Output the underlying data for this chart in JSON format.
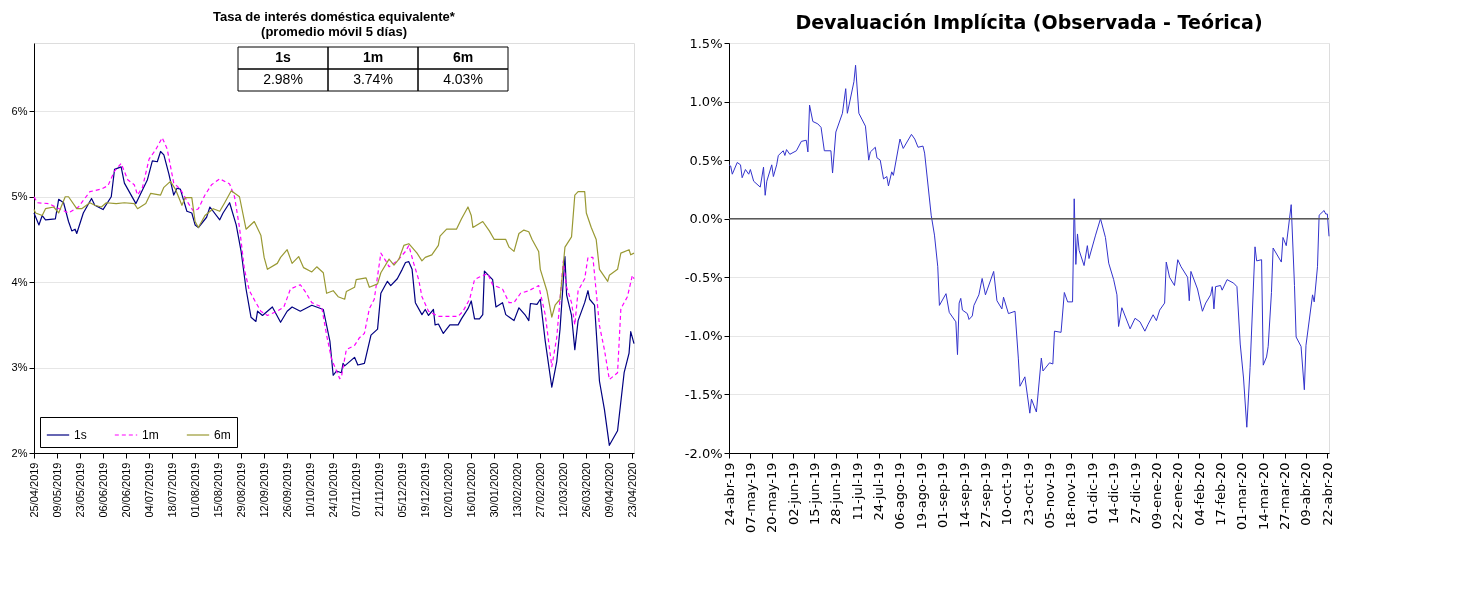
{
  "chart_data": [
    {
      "type": "line",
      "title": "Tasa de interés doméstica equivalente*",
      "subtitle": "(promedio móvil 5 días)",
      "xlim": [
        "2019-04-25",
        "2020-04-24"
      ],
      "ylim": [
        2,
        6.8
      ],
      "yticks": [
        {
          "value": 2,
          "label": "2%"
        },
        {
          "value": 3,
          "label": "3%"
        },
        {
          "value": 4,
          "label": "4%"
        },
        {
          "value": 5,
          "label": "5%"
        },
        {
          "value": 6,
          "label": "6%"
        }
      ],
      "xticks": [
        {
          "value": "2019-04-25",
          "label": "25/04/2019"
        },
        {
          "value": "2019-05-09",
          "label": "09/05/2019"
        },
        {
          "value": "2019-05-23",
          "label": "23/05/2019"
        },
        {
          "value": "2019-06-06",
          "label": "06/06/2019"
        },
        {
          "value": "2019-06-20",
          "label": "20/06/2019"
        },
        {
          "value": "2019-07-04",
          "label": "04/07/2019"
        },
        {
          "value": "2019-07-18",
          "label": "18/07/2019"
        },
        {
          "value": "2019-08-01",
          "label": "01/08/2019"
        },
        {
          "value": "2019-08-15",
          "label": "15/08/2019"
        },
        {
          "value": "2019-08-29",
          "label": "29/08/2019"
        },
        {
          "value": "2019-09-12",
          "label": "12/09/2019"
        },
        {
          "value": "2019-09-26",
          "label": "26/09/2019"
        },
        {
          "value": "2019-10-10",
          "label": "10/10/2019"
        },
        {
          "value": "2019-10-24",
          "label": "24/10/2019"
        },
        {
          "value": "2019-11-07",
          "label": "07/11/2019"
        },
        {
          "value": "2019-11-21",
          "label": "21/11/2019"
        },
        {
          "value": "2019-12-05",
          "label": "05/12/2019"
        },
        {
          "value": "2019-12-19",
          "label": "19/12/2019"
        },
        {
          "value": "2020-01-02",
          "label": "02/01/2020"
        },
        {
          "value": "2020-01-16",
          "label": "16/01/2020"
        },
        {
          "value": "2020-01-30",
          "label": "30/01/2020"
        },
        {
          "value": "2020-02-13",
          "label": "13/02/2020"
        },
        {
          "value": "2020-02-27",
          "label": "27/02/2020"
        },
        {
          "value": "2020-03-12",
          "label": "12/03/2020"
        },
        {
          "value": "2020-03-26",
          "label": "26/03/2020"
        },
        {
          "value": "2020-04-09",
          "label": "09/04/2020"
        },
        {
          "value": "2020-04-23",
          "label": "23/04/2020"
        }
      ],
      "grid": "y",
      "legend": "bottom left",
      "annotations": [
        "2.98%",
        "3.74%",
        "4.03%"
      ],
      "series": [
        {
          "name": "1s",
          "color": "#000080",
          "line_style": "solid",
          "x": [
            "2019-04-25",
            "2019-04-28",
            "2019-04-30",
            "2019-05-02",
            "2019-05-08",
            "2019-05-10",
            "2019-05-13",
            "2019-05-16",
            "2019-05-18",
            "2019-05-20",
            "2019-05-21",
            "2019-05-25",
            "2019-05-30",
            "2019-06-01",
            "2019-06-06",
            "2019-06-11",
            "2019-06-13",
            "2019-06-17",
            "2019-06-19",
            "2019-06-26",
            "2019-07-03",
            "2019-07-06",
            "2019-07-09",
            "2019-07-11",
            "2019-07-13",
            "2019-07-16",
            "2019-07-19",
            "2019-07-21",
            "2019-07-23",
            "2019-07-27",
            "2019-07-30",
            "2019-08-01",
            "2019-08-03",
            "2019-08-08",
            "2019-08-10",
            "2019-08-16",
            "2019-08-18",
            "2019-08-22",
            "2019-08-26",
            "2019-08-29",
            "2019-09-01",
            "2019-09-04",
            "2019-09-07",
            "2019-09-08",
            "2019-09-11",
            "2019-09-17",
            "2019-09-22",
            "2019-09-26",
            "2019-09-29",
            "2019-10-04",
            "2019-10-11",
            "2019-10-18",
            "2019-10-22",
            "2019-10-24",
            "2019-10-26",
            "2019-10-29",
            "2019-10-30",
            "2019-10-31",
            "2019-11-06",
            "2019-11-08",
            "2019-11-12",
            "2019-11-16",
            "2019-11-20",
            "2019-11-22",
            "2019-11-26",
            "2019-11-28",
            "2019-12-02",
            "2019-12-05",
            "2019-12-07",
            "2019-12-09",
            "2019-12-11",
            "2019-12-13",
            "2019-12-17",
            "2019-12-19",
            "2019-12-21",
            "2019-12-24",
            "2019-12-25",
            "2019-12-27",
            "2019-12-30",
            "2020-01-03",
            "2020-01-08",
            "2020-01-10",
            "2020-01-14",
            "2020-01-16",
            "2020-01-18",
            "2020-01-21",
            "2020-01-23",
            "2020-01-24",
            "2020-01-29",
            "2020-01-31",
            "2020-02-04",
            "2020-02-06",
            "2020-02-11",
            "2020-02-14",
            "2020-02-18",
            "2020-02-20",
            "2020-02-21",
            "2020-02-25",
            "2020-02-27",
            "2020-03-01",
            "2020-03-05",
            "2020-03-08",
            "2020-03-10",
            "2020-03-13",
            "2020-03-14",
            "2020-03-17",
            "2020-03-19",
            "2020-03-21",
            "2020-03-25",
            "2020-03-27",
            "2020-03-28",
            "2020-03-31",
            "2020-04-03",
            "2020-04-06",
            "2020-04-09",
            "2020-04-14",
            "2020-04-18",
            "2020-04-21",
            "2020-04-22",
            "2020-04-24"
          ],
          "values": [
            4.81,
            4.67,
            4.78,
            4.73,
            4.74,
            4.97,
            4.93,
            4.71,
            4.6,
            4.62,
            4.57,
            4.81,
            4.98,
            4.9,
            4.85,
            5.0,
            5.32,
            5.35,
            5.16,
            4.92,
            5.2,
            5.42,
            5.41,
            5.53,
            5.49,
            5.27,
            5.02,
            5.1,
            5.09,
            4.83,
            4.81,
            4.67,
            4.64,
            4.76,
            4.88,
            4.73,
            4.81,
            4.93,
            4.67,
            4.36,
            3.92,
            3.59,
            3.54,
            3.66,
            3.61,
            3.71,
            3.53,
            3.66,
            3.71,
            3.66,
            3.73,
            3.68,
            3.31,
            2.91,
            2.96,
            2.94,
            3.05,
            3.02,
            3.12,
            3.03,
            3.05,
            3.38,
            3.45,
            3.87,
            4.01,
            3.96,
            4.04,
            4.15,
            4.23,
            4.24,
            4.15,
            3.76,
            3.62,
            3.68,
            3.61,
            3.68,
            3.5,
            3.51,
            3.4,
            3.5,
            3.5,
            3.57,
            3.69,
            3.78,
            3.57,
            3.57,
            3.62,
            4.13,
            4.03,
            3.71,
            3.76,
            3.62,
            3.55,
            3.7,
            3.61,
            3.55,
            3.75,
            3.74,
            3.8,
            3.31,
            2.77,
            3.07,
            3.45,
            4.3,
            3.85,
            3.61,
            3.21,
            3.55,
            3.76,
            3.9,
            3.8,
            3.73,
            2.84,
            2.51,
            2.09,
            2.26,
            2.94,
            3.17,
            3.42,
            3.28
          ]
        },
        {
          "name": "1m",
          "color": "#ff00ff",
          "line_style": "dashed",
          "x": [
            "2019-04-25",
            "2019-04-27",
            "2019-05-04",
            "2019-05-08",
            "2019-05-16",
            "2019-05-22",
            "2019-05-29",
            "2019-06-05",
            "2019-06-09",
            "2019-06-13",
            "2019-06-17",
            "2019-06-21",
            "2019-06-25",
            "2019-06-27",
            "2019-06-30",
            "2019-07-04",
            "2019-07-08",
            "2019-07-12",
            "2019-07-15",
            "2019-07-19",
            "2019-07-23",
            "2019-07-28",
            "2019-07-31",
            "2019-08-03",
            "2019-08-07",
            "2019-08-11",
            "2019-08-16",
            "2019-08-22",
            "2019-08-25",
            "2019-08-28",
            "2019-08-31",
            "2019-09-03",
            "2019-09-07",
            "2019-09-10",
            "2019-09-14",
            "2019-09-20",
            "2019-09-24",
            "2019-09-28",
            "2019-10-04",
            "2019-10-07",
            "2019-10-11",
            "2019-10-17",
            "2019-10-20",
            "2019-10-23",
            "2019-10-28",
            "2019-10-29",
            "2019-11-01",
            "2019-11-06",
            "2019-11-09",
            "2019-11-12",
            "2019-11-15",
            "2019-11-18",
            "2019-11-22",
            "2019-11-25",
            "2019-11-27",
            "2019-12-02",
            "2019-12-07",
            "2019-12-09",
            "2019-12-12",
            "2019-12-15",
            "2019-12-17",
            "2019-12-21",
            "2019-12-27",
            "2020-01-08",
            "2020-01-11",
            "2020-01-15",
            "2020-01-18",
            "2020-01-21",
            "2020-01-26",
            "2020-01-29",
            "2020-02-04",
            "2020-02-08",
            "2020-02-11",
            "2020-02-15",
            "2020-02-20",
            "2020-02-26",
            "2020-03-01",
            "2020-03-05",
            "2020-03-08",
            "2020-03-12",
            "2020-03-14",
            "2020-03-17",
            "2020-03-19",
            "2020-03-21",
            "2020-03-25",
            "2020-03-27",
            "2020-03-30",
            "2020-04-03",
            "2020-04-06",
            "2020-04-09",
            "2020-04-14",
            "2020-04-16",
            "2020-04-20",
            "2020-04-23",
            "2020-04-24"
          ],
          "values": [
            5.0,
            4.93,
            4.92,
            4.88,
            4.81,
            4.88,
            5.06,
            5.09,
            5.13,
            5.3,
            5.39,
            5.2,
            5.14,
            5.02,
            5.11,
            5.44,
            5.55,
            5.69,
            5.56,
            5.16,
            5.09,
            4.92,
            4.83,
            4.86,
            5.02,
            5.14,
            5.21,
            5.15,
            5.0,
            4.64,
            4.15,
            3.9,
            3.76,
            3.66,
            3.61,
            3.66,
            3.71,
            3.92,
            3.97,
            3.89,
            3.76,
            3.71,
            3.38,
            3.1,
            2.87,
            2.89,
            3.21,
            3.26,
            3.35,
            3.4,
            3.69,
            3.8,
            4.34,
            4.25,
            4.18,
            4.25,
            4.36,
            4.43,
            4.22,
            4.03,
            3.83,
            3.66,
            3.6,
            3.6,
            3.66,
            3.8,
            4.03,
            4.06,
            4.1,
            3.97,
            3.92,
            3.76,
            3.76,
            3.87,
            3.9,
            3.96,
            3.62,
            3.01,
            3.35,
            4.25,
            3.94,
            3.76,
            3.5,
            3.9,
            4.04,
            4.29,
            4.29,
            3.49,
            3.21,
            2.86,
            2.94,
            3.69,
            3.83,
            4.08,
            4.04
          ]
        },
        {
          "name": "6m",
          "color": "#999933",
          "line_style": "solid",
          "x": [
            "2019-04-25",
            "2019-04-26",
            "2019-04-30",
            "2019-05-02",
            "2019-05-07",
            "2019-05-10",
            "2019-05-14",
            "2019-05-16",
            "2019-05-21",
            "2019-05-24",
            "2019-05-29",
            "2019-06-01",
            "2019-06-05",
            "2019-06-08",
            "2019-06-14",
            "2019-06-19",
            "2019-06-25",
            "2019-06-27",
            "2019-07-02",
            "2019-07-05",
            "2019-07-11",
            "2019-07-13",
            "2019-07-17",
            "2019-07-20",
            "2019-07-24",
            "2019-07-26",
            "2019-07-30",
            "2019-08-01",
            "2019-08-03",
            "2019-08-07",
            "2019-08-12",
            "2019-08-16",
            "2019-08-19",
            "2019-08-23",
            "2019-08-28",
            "2019-09-01",
            "2019-09-06",
            "2019-09-10",
            "2019-09-12",
            "2019-09-14",
            "2019-09-20",
            "2019-09-22",
            "2019-09-26",
            "2019-09-29",
            "2019-10-03",
            "2019-10-06",
            "2019-10-11",
            "2019-10-14",
            "2019-10-18",
            "2019-10-20",
            "2019-10-24",
            "2019-10-27",
            "2019-10-31",
            "2019-11-01",
            "2019-11-06",
            "2019-11-07",
            "2019-11-13",
            "2019-11-15",
            "2019-11-20",
            "2019-11-22",
            "2019-11-27",
            "2019-11-30",
            "2019-12-03",
            "2019-12-06",
            "2019-12-09",
            "2019-12-14",
            "2019-12-17",
            "2019-12-19",
            "2019-12-23",
            "2019-12-27",
            "2019-12-28",
            "2020-01-01",
            "2020-01-07",
            "2020-01-10",
            "2020-01-14",
            "2020-01-16",
            "2020-01-17",
            "2020-01-23",
            "2020-01-27",
            "2020-01-30",
            "2020-02-06",
            "2020-02-08",
            "2020-02-11",
            "2020-02-14",
            "2020-02-17",
            "2020-02-20",
            "2020-02-22",
            "2020-02-26",
            "2020-02-27",
            "2020-03-02",
            "2020-03-05",
            "2020-03-07",
            "2020-03-10",
            "2020-03-13",
            "2020-03-17",
            "2020-03-19",
            "2020-03-21",
            "2020-03-25",
            "2020-03-26",
            "2020-03-29",
            "2020-04-01",
            "2020-04-03",
            "2020-04-08",
            "2020-04-09",
            "2020-04-14",
            "2020-04-16",
            "2020-04-21",
            "2020-04-22",
            "2020-04-24"
          ],
          "values": [
            4.85,
            4.81,
            4.78,
            4.86,
            4.88,
            4.81,
            5.0,
            5.0,
            4.86,
            4.86,
            4.93,
            4.9,
            4.88,
            4.93,
            4.92,
            4.93,
            4.92,
            4.86,
            4.92,
            5.04,
            5.02,
            5.11,
            5.18,
            5.09,
            4.9,
            4.99,
            4.99,
            4.71,
            4.64,
            4.78,
            4.86,
            4.83,
            4.93,
            5.07,
            5.0,
            4.62,
            4.71,
            4.55,
            4.29,
            4.15,
            4.22,
            4.29,
            4.38,
            4.22,
            4.3,
            4.17,
            4.12,
            4.18,
            4.11,
            3.87,
            3.9,
            3.83,
            3.8,
            3.89,
            3.94,
            4.03,
            4.05,
            3.94,
            3.98,
            4.11,
            4.27,
            4.2,
            4.27,
            4.43,
            4.45,
            4.34,
            4.25,
            4.29,
            4.32,
            4.43,
            4.54,
            4.62,
            4.62,
            4.74,
            4.88,
            4.78,
            4.64,
            4.71,
            4.6,
            4.5,
            4.5,
            4.41,
            4.36,
            4.57,
            4.61,
            4.59,
            4.5,
            4.36,
            4.15,
            3.9,
            3.59,
            3.73,
            3.8,
            4.41,
            4.53,
            5.02,
            5.06,
            5.06,
            4.81,
            4.64,
            4.5,
            4.15,
            4.01,
            4.08,
            4.15,
            4.34,
            4.38,
            4.32,
            4.34
          ]
        }
      ]
    },
    {
      "type": "line",
      "title": "Devaluación Implícita (Observada - Teórica)",
      "xlim": [
        "2019-04-24",
        "2020-04-23"
      ],
      "ylim": [
        -2,
        1.5
      ],
      "yticks": [
        {
          "value": -2,
          "label": "-2.0%"
        },
        {
          "value": -1.5,
          "label": "-1.5%"
        },
        {
          "value": -1,
          "label": "-1.0%"
        },
        {
          "value": -0.5,
          "label": "-0.5%"
        },
        {
          "value": 0,
          "label": "0.0%"
        },
        {
          "value": 0.5,
          "label": "0.5%"
        },
        {
          "value": 1,
          "label": "1.0%"
        },
        {
          "value": 1.5,
          "label": "1.5%"
        }
      ],
      "xticks": [
        {
          "value": "2019-04-24",
          "label": "24-abr-19"
        },
        {
          "value": "2019-05-07",
          "label": "07-may-19"
        },
        {
          "value": "2019-05-20",
          "label": "20-may-19"
        },
        {
          "value": "2019-06-02",
          "label": "02-jun-19"
        },
        {
          "value": "2019-06-15",
          "label": "15-jun-19"
        },
        {
          "value": "2019-06-28",
          "label": "28-jun-19"
        },
        {
          "value": "2019-07-11",
          "label": "11-jul-19"
        },
        {
          "value": "2019-07-24",
          "label": "24-jul-19"
        },
        {
          "value": "2019-08-06",
          "label": "06-ago-19"
        },
        {
          "value": "2019-08-19",
          "label": "19-ago-19"
        },
        {
          "value": "2019-09-01",
          "label": "01-sep-19"
        },
        {
          "value": "2019-09-14",
          "label": "14-sep-19"
        },
        {
          "value": "2019-09-27",
          "label": "27-sep-19"
        },
        {
          "value": "2019-10-10",
          "label": "10-oct-19"
        },
        {
          "value": "2019-10-23",
          "label": "23-oct-19"
        },
        {
          "value": "2019-11-05",
          "label": "05-nov-19"
        },
        {
          "value": "2019-11-18",
          "label": "18-nov-19"
        },
        {
          "value": "2019-12-01",
          "label": "01-dic-19"
        },
        {
          "value": "2019-12-14",
          "label": "14-dic-19"
        },
        {
          "value": "2019-12-27",
          "label": "27-dic-19"
        },
        {
          "value": "2020-01-09",
          "label": "09-ene-20"
        },
        {
          "value": "2020-01-22",
          "label": "22-ene-20"
        },
        {
          "value": "2020-02-04",
          "label": "04-feb-20"
        },
        {
          "value": "2020-02-17",
          "label": "17-feb-20"
        },
        {
          "value": "2020-03-01",
          "label": "01-mar-20"
        },
        {
          "value": "2020-03-14",
          "label": "14-mar-20"
        },
        {
          "value": "2020-03-27",
          "label": "27-mar-20"
        },
        {
          "value": "2020-04-09",
          "label": "09-abr-20"
        },
        {
          "value": "2020-04-22",
          "label": "22-abr-20"
        }
      ],
      "grid": "y",
      "ref_lines": [
        {
          "axis": "y",
          "value": 0,
          "color": "#595959"
        }
      ],
      "series": [
        {
          "color": "#3333cc",
          "x": [
            "2019-04-24",
            "2019-04-25",
            "2019-04-26",
            "2019-04-29",
            "2019-05-01",
            "2019-05-02",
            "2019-05-04",
            "2019-05-06",
            "2019-05-07",
            "2019-05-09",
            "2019-05-13",
            "2019-05-15",
            "2019-05-16",
            "2019-05-17",
            "2019-05-20",
            "2019-05-21",
            "2019-05-23",
            "2019-05-24",
            "2019-05-27",
            "2019-05-28",
            "2019-05-29",
            "2019-05-31",
            "2019-06-04",
            "2019-06-07",
            "2019-06-10",
            "2019-06-11",
            "2019-06-12",
            "2019-06-14",
            "2019-06-17",
            "2019-06-19",
            "2019-06-21",
            "2019-06-25",
            "2019-06-26",
            "2019-06-28",
            "2019-07-02",
            "2019-07-04",
            "2019-07-05",
            "2019-07-09",
            "2019-07-10",
            "2019-07-12",
            "2019-07-16",
            "2019-07-18",
            "2019-07-19",
            "2019-07-22",
            "2019-07-23",
            "2019-07-25",
            "2019-07-27",
            "2019-07-29",
            "2019-07-30",
            "2019-08-01",
            "2019-08-02",
            "2019-08-06",
            "2019-08-08",
            "2019-08-13",
            "2019-08-15",
            "2019-08-17",
            "2019-08-20",
            "2019-08-21",
            "2019-08-25",
            "2019-08-27",
            "2019-08-29",
            "2019-08-30",
            "2019-09-03",
            "2019-09-05",
            "2019-09-09",
            "2019-09-10",
            "2019-09-11",
            "2019-09-12",
            "2019-09-13",
            "2019-09-16",
            "2019-09-17",
            "2019-09-19",
            "2019-09-20",
            "2019-09-23",
            "2019-09-25",
            "2019-09-27",
            "2019-10-02",
            "2019-10-04",
            "2019-10-07",
            "2019-10-08",
            "2019-10-11",
            "2019-10-15",
            "2019-10-17",
            "2019-10-18",
            "2019-10-21",
            "2019-10-24",
            "2019-10-25",
            "2019-10-28",
            "2019-10-31",
            "2019-11-01",
            "2019-11-05",
            "2019-11-07",
            "2019-11-08",
            "2019-11-12",
            "2019-11-14",
            "2019-11-16",
            "2019-11-19",
            "2019-11-20",
            "2019-11-21",
            "2019-11-22",
            "2019-11-23",
            "2019-11-26",
            "2019-11-28",
            "2019-11-29",
            "2019-12-03",
            "2019-12-06",
            "2019-12-09",
            "2019-12-11",
            "2019-12-14",
            "2019-12-16",
            "2019-12-17",
            "2019-12-19",
            "2019-12-24",
            "2019-12-27",
            "2019-12-30",
            "2020-01-02",
            "2020-01-04",
            "2020-01-07",
            "2020-01-09",
            "2020-01-11",
            "2020-01-14",
            "2020-01-15",
            "2020-01-17",
            "2020-01-20",
            "2020-01-22",
            "2020-01-24",
            "2020-01-28",
            "2020-01-29",
            "2020-01-30",
            "2020-02-03",
            "2020-02-06",
            "2020-02-08",
            "2020-02-11",
            "2020-02-12",
            "2020-02-13",
            "2020-02-14",
            "2020-02-17",
            "2020-02-18",
            "2020-02-21",
            "2020-02-25",
            "2020-02-27",
            "2020-02-29",
            "2020-03-02",
            "2020-03-04",
            "2020-03-06",
            "2020-03-09",
            "2020-03-10",
            "2020-03-13",
            "2020-03-14",
            "2020-03-16",
            "2020-03-17",
            "2020-03-19",
            "2020-03-20",
            "2020-03-25",
            "2020-03-26",
            "2020-03-28",
            "2020-03-31",
            "2020-04-02",
            "2020-04-03",
            "2020-04-06",
            "2020-04-08",
            "2020-04-09",
            "2020-04-13",
            "2020-04-14",
            "2020-04-16",
            "2020-04-17",
            "2020-04-20",
            "2020-04-21",
            "2020-04-22",
            "2020-04-23"
          ],
          "values": [
            0.46,
            0.45,
            0.38,
            0.48,
            0.46,
            0.35,
            0.42,
            0.38,
            0.42,
            0.32,
            0.27,
            0.44,
            0.2,
            0.32,
            0.46,
            0.36,
            0.46,
            0.54,
            0.58,
            0.54,
            0.59,
            0.55,
            0.58,
            0.66,
            0.67,
            0.57,
            0.97,
            0.83,
            0.81,
            0.78,
            0.58,
            0.58,
            0.39,
            0.74,
            0.9,
            1.11,
            0.9,
            1.17,
            1.31,
            0.9,
            0.79,
            0.5,
            0.57,
            0.61,
            0.52,
            0.5,
            0.34,
            0.36,
            0.28,
            0.4,
            0.37,
            0.68,
            0.6,
            0.72,
            0.68,
            0.61,
            0.62,
            0.56,
            0.03,
            -0.14,
            -0.41,
            -0.74,
            -0.64,
            -0.8,
            -0.88,
            -1.16,
            -0.72,
            -0.68,
            -0.78,
            -0.81,
            -0.86,
            -0.83,
            -0.74,
            -0.65,
            -0.51,
            -0.65,
            -0.45,
            -0.7,
            -0.77,
            -0.67,
            -0.81,
            -0.79,
            -1.19,
            -1.43,
            -1.35,
            -1.66,
            -1.54,
            -1.65,
            -1.19,
            -1.3,
            -1.23,
            -1.24,
            -0.96,
            -0.97,
            -0.63,
            -0.71,
            -0.71,
            0.17,
            -0.39,
            -0.13,
            -0.27,
            -0.4,
            -0.23,
            -0.34,
            -0.14,
            0.0,
            -0.16,
            -0.38,
            -0.52,
            -0.65,
            -0.92,
            -0.76,
            -0.94,
            -0.85,
            -0.88,
            -0.96,
            -0.9,
            -0.82,
            -0.87,
            -0.78,
            -0.72,
            -0.37,
            -0.5,
            -0.57,
            -0.35,
            -0.41,
            -0.5,
            -0.7,
            -0.45,
            -0.6,
            -0.79,
            -0.72,
            -0.65,
            -0.58,
            -0.77,
            -0.58,
            -0.57,
            -0.61,
            -0.52,
            -0.55,
            -0.58,
            -1.07,
            -1.36,
            -1.78,
            -1.27,
            -0.24,
            -0.36,
            -0.35,
            -1.25,
            -1.18,
            -1.09,
            -0.63,
            -0.25,
            -0.37,
            -0.16,
            -0.23,
            0.12,
            -0.57,
            -1.01,
            -1.09,
            -1.46,
            -1.08,
            -0.65,
            -0.71,
            -0.41,
            0.03,
            0.07,
            0.04,
            0.04,
            -0.15
          ]
        }
      ]
    }
  ]
}
